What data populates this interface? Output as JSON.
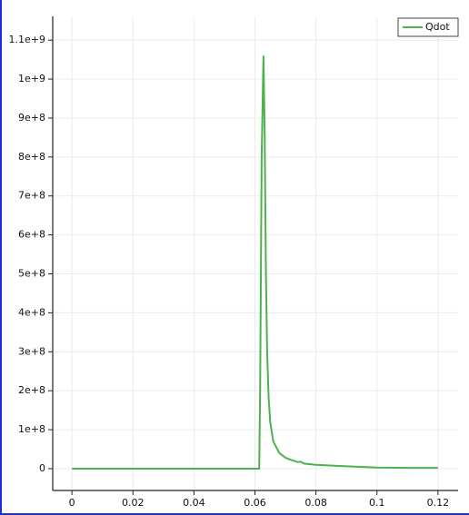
{
  "chart_data": {
    "type": "line",
    "x": [
      0,
      0.02,
      0.04,
      0.06,
      0.0614,
      0.0617,
      0.0622,
      0.0628,
      0.0632,
      0.0636,
      0.064,
      0.0645,
      0.065,
      0.066,
      0.068,
      0.07,
      0.072,
      0.074,
      0.075,
      0.076,
      0.08,
      0.09,
      0.1,
      0.11,
      0.12
    ],
    "series": [
      {
        "name": "Qdot",
        "color": "#4cb24c",
        "values": [
          0,
          0,
          0,
          0,
          0,
          200000000,
          800000000,
          1060000000,
          850000000,
          500000000,
          300000000,
          180000000,
          120000000,
          70000000,
          40000000,
          28000000,
          22000000,
          17000000,
          18000000,
          13000000,
          10000000,
          6000000,
          3000000,
          2000000,
          2000000
        ]
      }
    ],
    "xlim": [
      -0.0063,
      0.1266
    ],
    "ylim": [
      -56000000,
      1161000000
    ],
    "xticks": [
      0,
      0.02,
      0.04,
      0.06,
      0.08,
      0.1,
      0.12
    ],
    "yticks": [
      0,
      {
        "value": 100000000,
        "label": "1e+8"
      },
      {
        "value": 200000000,
        "label": "2e+8"
      },
      {
        "value": 300000000,
        "label": "3e+8"
      },
      {
        "value": 400000000,
        "label": "4e+8"
      },
      {
        "value": 500000000,
        "label": "5e+8"
      },
      {
        "value": 600000000,
        "label": "6e+8"
      },
      {
        "value": 700000000,
        "label": "7e+8"
      },
      {
        "value": 800000000,
        "label": "8e+8"
      },
      {
        "value": 900000000,
        "label": "9e+8"
      },
      {
        "value": 1000000000,
        "label": "1e+9"
      },
      {
        "value": 1100000000,
        "label": "1.1e+9"
      }
    ],
    "grid": true,
    "legend": "top-right"
  }
}
